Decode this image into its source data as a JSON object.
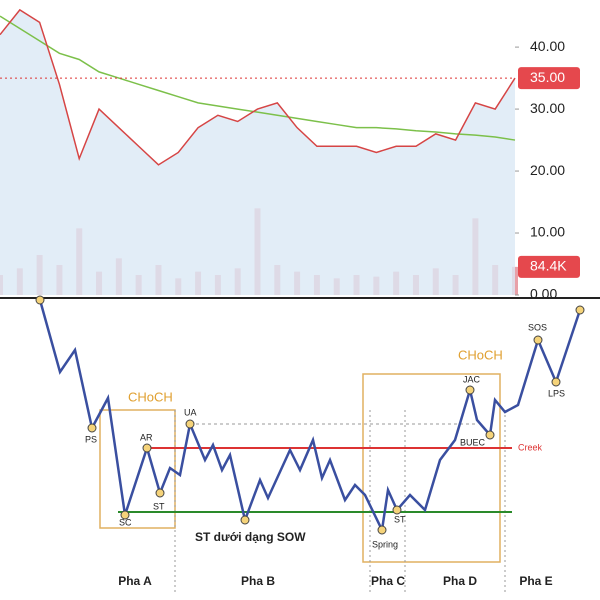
{
  "chart_data": {
    "type": "line",
    "price": {
      "name": "Price",
      "color": "#d64545",
      "fill": "#dbe8f5",
      "values": [
        42,
        46,
        44,
        34,
        22,
        30,
        27,
        24,
        21,
        23,
        27,
        29,
        28,
        30,
        31,
        27,
        24,
        24,
        24,
        23,
        24,
        24,
        26,
        25,
        31,
        30,
        35
      ]
    },
    "ma": {
      "name": "MA",
      "color": "#7cc04a",
      "values": [
        45,
        43,
        41,
        39,
        38,
        36,
        35,
        34,
        33,
        32,
        31,
        30.5,
        30,
        29.5,
        29,
        28.5,
        28,
        27.5,
        27,
        27,
        26.8,
        26.5,
        26.3,
        26,
        25.8,
        25.5,
        25
      ]
    },
    "volume": {
      "color": "#e8a0a8",
      "values": [
        60,
        80,
        120,
        90,
        200,
        70,
        110,
        60,
        90,
        50,
        70,
        60,
        80,
        260,
        90,
        70,
        60,
        50,
        60,
        55,
        70,
        60,
        80,
        60,
        230,
        90,
        84.4
      ],
      "vlim": [
        0,
        300
      ]
    },
    "last_price": {
      "value": 35,
      "label": "35.00"
    },
    "last_volume": {
      "value": 84.4,
      "label": "84.4K"
    },
    "ylim": [
      0,
      47.6
    ],
    "yticks": [
      {
        "value": 0,
        "label": "0.00"
      },
      {
        "value": 10,
        "label": "10.00"
      },
      {
        "value": 20,
        "label": "20.00"
      },
      {
        "value": 30,
        "label": "30.00"
      },
      {
        "value": 40,
        "label": "40.00"
      }
    ]
  },
  "diagram": {
    "choch": [
      "CHoCH",
      "CHoCH"
    ],
    "points": [
      "PS",
      "SC",
      "AR",
      "ST",
      "UA",
      "ST",
      "Spring",
      "JAC",
      "BUEC",
      "SOS",
      "LPS"
    ],
    "sow": "ST dưới dạng SOW",
    "creek": "Creek",
    "phases": [
      "Pha A",
      "Pha B",
      "Pha C",
      "Pha D",
      "Pha E"
    ]
  }
}
